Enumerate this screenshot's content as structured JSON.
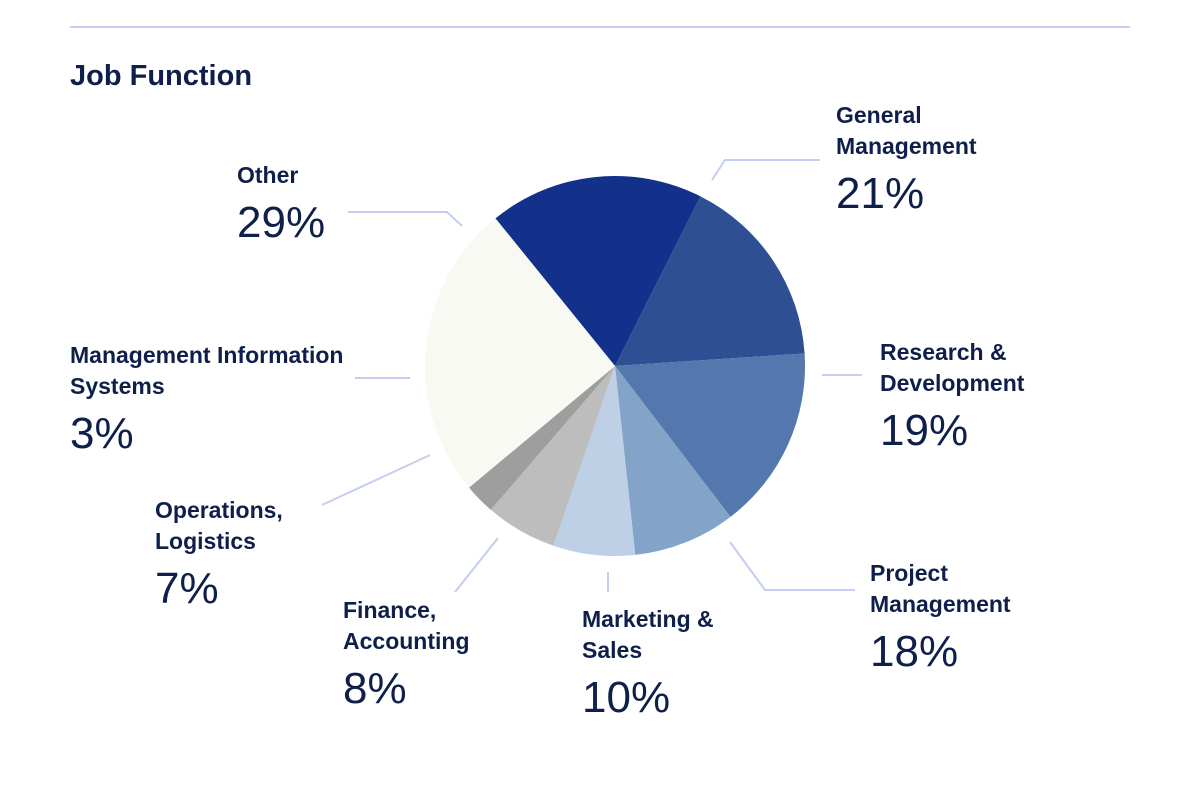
{
  "chart_data": {
    "type": "pie",
    "title": "Job Function",
    "categories": [
      "General Management",
      "Research & Development",
      "Project Management",
      "Marketing & Sales",
      "Finance, Accounting",
      "Operations, Logistics",
      "Management Information Systems",
      "Other"
    ],
    "values": [
      21,
      19,
      18,
      10,
      8,
      7,
      3,
      29
    ],
    "value_labels": [
      "21%",
      "19%",
      "18%",
      "10%",
      "8%",
      "7%",
      "3%",
      "29%"
    ],
    "colors": [
      "#13318a",
      "#2e4f94",
      "#5478ad",
      "#83a3c9",
      "#bdd0e6",
      "#bdbdbd",
      "#9e9e9e",
      "#f9f9f3"
    ]
  }
}
